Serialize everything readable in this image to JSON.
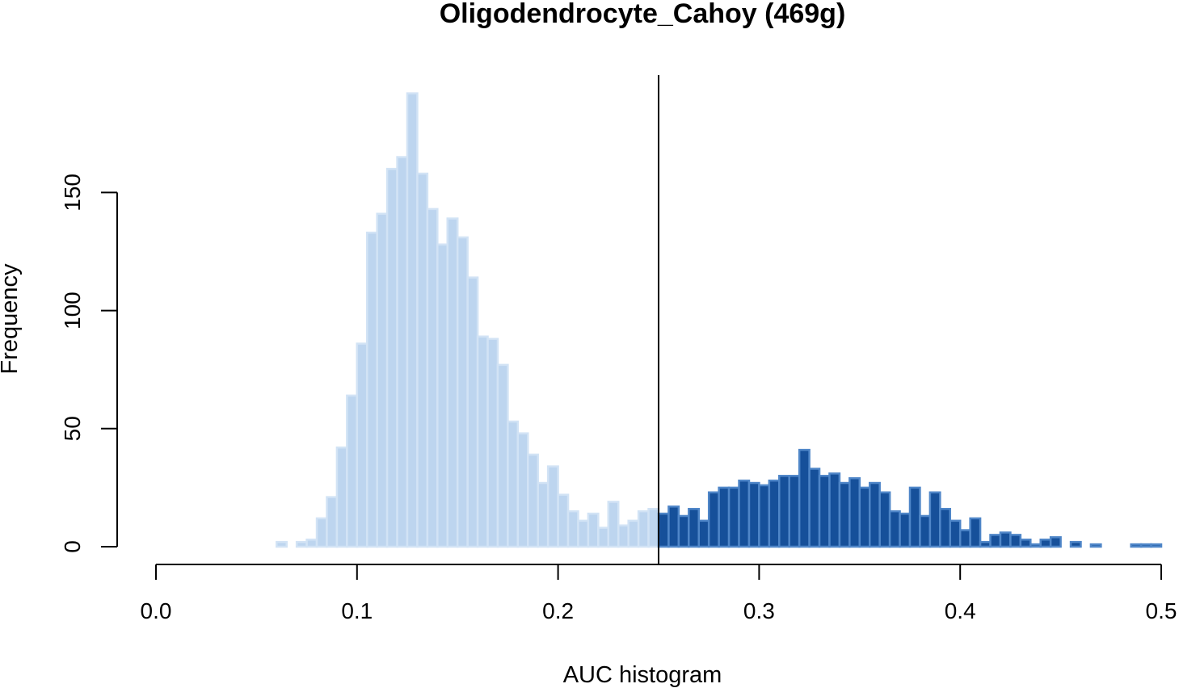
{
  "chart_data": {
    "type": "bar",
    "title": "Oligodendrocyte_Cahoy (469g)",
    "xlabel": "AUC histogram",
    "ylabel": "Frequency",
    "xlim": [
      0,
      0.5
    ],
    "ylim": [
      0,
      190
    ],
    "x_ticks": [
      "0.0",
      "0.1",
      "0.2",
      "0.3",
      "0.4",
      "0.5"
    ],
    "y_ticks": [
      "0",
      "50",
      "100",
      "150"
    ],
    "threshold": 0.25,
    "bin_width": 0.005,
    "bin_start": 0.06,
    "values": [
      2,
      0,
      2,
      3,
      12,
      21,
      42,
      64,
      86,
      133,
      141,
      160,
      165,
      192,
      158,
      143,
      128,
      139,
      131,
      114,
      89,
      88,
      77,
      53,
      48,
      39,
      27,
      34,
      22,
      15,
      11,
      14,
      8,
      19,
      9,
      11,
      15,
      16,
      14,
      17,
      13,
      16,
      11,
      23,
      25,
      25,
      28,
      27,
      26,
      28,
      30,
      30,
      41,
      33,
      30,
      31,
      27,
      29,
      25,
      27,
      23,
      15,
      14,
      25,
      13,
      23,
      16,
      11,
      7,
      12,
      2,
      5,
      6,
      5,
      3,
      1,
      3,
      4,
      0,
      2,
      0,
      1,
      0,
      0,
      0,
      1,
      1,
      1
    ],
    "colors": {
      "below_fill": "#BDD5EF",
      "below_border": "#D2E3F5",
      "above_fill": "#16509A",
      "above_border": "#4F86C8",
      "threshold_line": "#000000"
    }
  }
}
